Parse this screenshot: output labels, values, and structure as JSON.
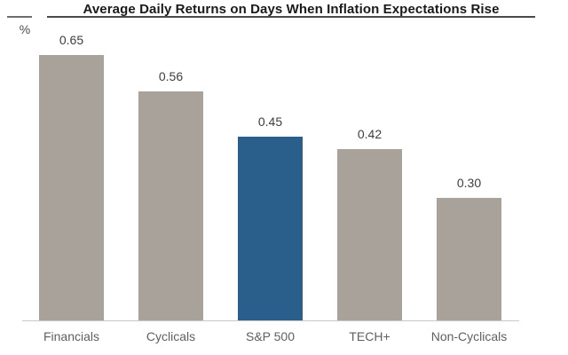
{
  "chart_data": {
    "type": "bar",
    "title": "Average Daily Returns on Days When Inflation Expectations Rise",
    "unit_label": "%",
    "categories": [
      "Financials",
      "Cyclicals",
      "S&P 500",
      "TECH+",
      "Non-Cyclicals"
    ],
    "values": [
      0.65,
      0.56,
      0.45,
      0.42,
      0.3
    ],
    "value_labels": [
      "0.65",
      "0.56",
      "0.45",
      "0.42",
      "0.30"
    ],
    "highlight_index": 2,
    "highlighted_category": "S&P 500",
    "ylim": [
      0,
      0.7
    ],
    "grid": false,
    "legend": false,
    "colors": {
      "bar": "#a9a29b",
      "highlight_bar": "#2a5f8c",
      "title_text": "#1a1a1a",
      "title_rule": "#4a4a4a",
      "left_rule": "#6e6e6e",
      "unit_text": "#4a4a4a",
      "value_label_text": "#3d3d3d",
      "category_label_text": "#5f5f5f",
      "axis_line": "#c9c9c9",
      "background": "#ffffff"
    }
  }
}
